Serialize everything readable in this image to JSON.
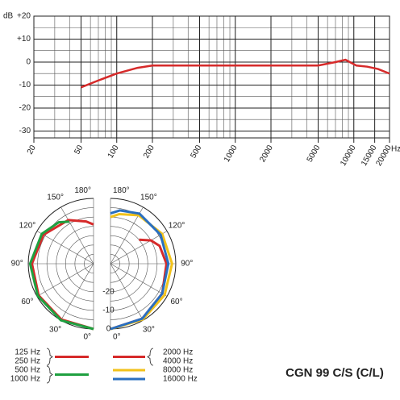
{
  "chart_data": [
    {
      "type": "line",
      "y_label": "dB",
      "x_label": "Hz",
      "log_x": true,
      "grid": true,
      "color": "#d62a2a",
      "xlim": [
        20,
        20000
      ],
      "ylim": [
        -33,
        20
      ],
      "xticks": [
        20,
        50,
        100,
        200,
        500,
        1000,
        2000,
        5000,
        10000,
        15000,
        20000
      ],
      "yticks": [
        {
          "value": 20,
          "label": "+20"
        },
        {
          "value": 10,
          "label": "+10"
        },
        0,
        -10,
        -20,
        -30
      ],
      "x": [
        50,
        70,
        100,
        150,
        200,
        500,
        1000,
        2000,
        5000,
        7000,
        8500,
        10500,
        13000,
        16000,
        20000
      ],
      "values": [
        -11,
        -8,
        -5,
        -2.5,
        -1.5,
        -1.5,
        -1.5,
        -1.5,
        -1.5,
        0,
        1,
        -1.5,
        -2,
        -3,
        -5
      ]
    },
    {
      "type": "polar",
      "title": "CGN 99 C/S (C/L)",
      "rlim": [
        -35,
        0
      ],
      "rticks": [
        -20,
        -10,
        0
      ],
      "rgrid": [
        0,
        -5,
        -10,
        -15,
        -20,
        -25,
        -30
      ],
      "angle_ticks": [
        {
          "value": 0,
          "label": "0°"
        },
        {
          "value": 30,
          "label": "30°"
        },
        {
          "value": 60,
          "label": "60°"
        },
        {
          "value": 90,
          "label": "90°"
        },
        {
          "value": 120,
          "label": "120°"
        },
        {
          "value": 150,
          "label": "150°"
        },
        {
          "value": 180,
          "label": "180°"
        }
      ],
      "series": [
        {
          "names": [
            "125 Hz",
            "250 Hz"
          ],
          "color": "#d62a2a",
          "side": "left",
          "angles": [
            0,
            30,
            60,
            90,
            120,
            150,
            170,
            180
          ],
          "values": [
            0,
            -0.5,
            -1,
            -2,
            -4,
            -8,
            -12,
            -14
          ]
        },
        {
          "names": [
            "500 Hz",
            "1000 Hz"
          ],
          "color": "#1fa040",
          "side": "left",
          "angles": [
            0,
            30,
            60,
            90,
            120,
            140,
            150
          ],
          "values": [
            0,
            0,
            -0.5,
            -1,
            -3,
            -6,
            -9
          ]
        },
        {
          "names": [
            "2000 Hz",
            "4000 Hz"
          ],
          "color": "#d62a2a",
          "side": "right",
          "angles": [
            0,
            30,
            60,
            90,
            110,
            120,
            130
          ],
          "values": [
            0,
            -1,
            -3,
            -5,
            -7,
            -10,
            -15
          ]
        },
        {
          "names": [
            "8000 Hz"
          ],
          "color": "#f2c21b",
          "side": "right",
          "angles": [
            0,
            30,
            60,
            90,
            120,
            150,
            170,
            180
          ],
          "values": [
            0,
            -0.5,
            -1.5,
            -2,
            -3,
            -5,
            -8,
            -10
          ]
        },
        {
          "names": [
            "16000 Hz"
          ],
          "color": "#2a6fc0",
          "side": "right",
          "angles": [
            0,
            30,
            60,
            90,
            120,
            150,
            170,
            180
          ],
          "values": [
            0,
            -1,
            -3,
            -4,
            -4,
            -4,
            -6,
            -8
          ]
        }
      ]
    }
  ]
}
